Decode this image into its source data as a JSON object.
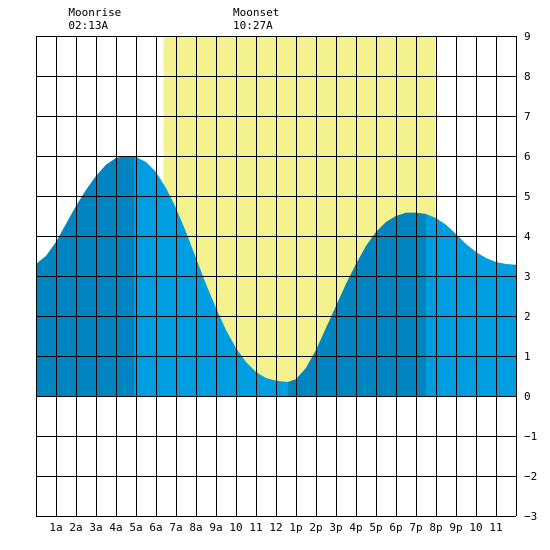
{
  "chart_data": {
    "type": "area",
    "annotations": [
      {
        "title": "Moonrise",
        "time": "02:13A",
        "hour": 2.2167
      },
      {
        "title": "Moonset",
        "time": "10:27A",
        "hour": 10.45
      }
    ],
    "daylight": {
      "start_hour": 6.38,
      "end_hour": 19.98
    },
    "x_tick_labels": [
      "1a",
      "2a",
      "3a",
      "4a",
      "5a",
      "6a",
      "7a",
      "8a",
      "9a",
      "10",
      "11",
      "12",
      "1p",
      "2p",
      "3p",
      "4p",
      "5p",
      "6p",
      "7p",
      "8p",
      "9p",
      "10",
      "11"
    ],
    "y_tick_labels": [
      "9",
      "8",
      "7",
      "6",
      "5",
      "4",
      "3",
      "2",
      "1",
      "0",
      "−1",
      "−2",
      "−3"
    ],
    "xlim": [
      0,
      24
    ],
    "ylim": [
      -3,
      9
    ],
    "rising_intervals": [
      [
        0,
        4.9
      ],
      [
        12.6,
        19.5
      ]
    ],
    "tide_points": [
      [
        0,
        3.3
      ],
      [
        0.5,
        3.5
      ],
      [
        1,
        3.85
      ],
      [
        1.5,
        4.3
      ],
      [
        2,
        4.75
      ],
      [
        2.5,
        5.15
      ],
      [
        3,
        5.5
      ],
      [
        3.5,
        5.78
      ],
      [
        4,
        5.95
      ],
      [
        4.5,
        6.0
      ],
      [
        4.9,
        6.0
      ],
      [
        5.5,
        5.85
      ],
      [
        6,
        5.6
      ],
      [
        6.5,
        5.2
      ],
      [
        7,
        4.7
      ],
      [
        7.5,
        4.1
      ],
      [
        8,
        3.45
      ],
      [
        8.5,
        2.8
      ],
      [
        9,
        2.2
      ],
      [
        9.5,
        1.65
      ],
      [
        10,
        1.2
      ],
      [
        10.5,
        0.85
      ],
      [
        11,
        0.6
      ],
      [
        11.5,
        0.45
      ],
      [
        12,
        0.38
      ],
      [
        12.6,
        0.35
      ],
      [
        13,
        0.42
      ],
      [
        13.5,
        0.7
      ],
      [
        14,
        1.15
      ],
      [
        14.5,
        1.7
      ],
      [
        15,
        2.25
      ],
      [
        15.5,
        2.8
      ],
      [
        16,
        3.3
      ],
      [
        16.5,
        3.75
      ],
      [
        17,
        4.1
      ],
      [
        17.5,
        4.35
      ],
      [
        18,
        4.5
      ],
      [
        18.5,
        4.58
      ],
      [
        19,
        4.58
      ],
      [
        19.5,
        4.55
      ],
      [
        20,
        4.45
      ],
      [
        20.5,
        4.28
      ],
      [
        21,
        4.05
      ],
      [
        21.5,
        3.8
      ],
      [
        22,
        3.6
      ],
      [
        22.5,
        3.45
      ],
      [
        23,
        3.35
      ],
      [
        23.5,
        3.3
      ],
      [
        24,
        3.28
      ]
    ],
    "colors": {
      "daylight": "#F4F28F",
      "tide_rising": "#0085C0",
      "tide_falling": "#009DE0",
      "grid": "#000000",
      "background": "#FFFFFF"
    }
  }
}
